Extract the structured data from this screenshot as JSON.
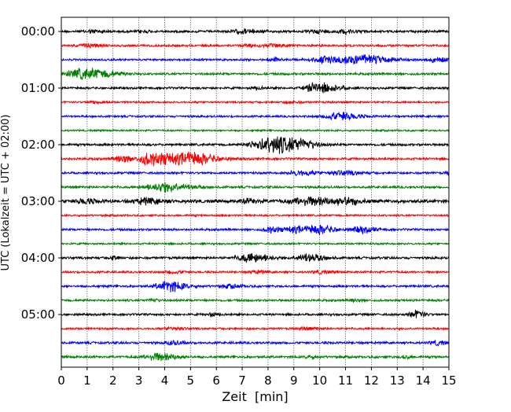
{
  "chart_data": {
    "type": "line",
    "subtype": "helicorder",
    "title": "",
    "xlabel": "Zeit  [min]",
    "ylabel": "UTC (Lokalzeit = UTC + 02:00)",
    "xlim": [
      0,
      15
    ],
    "x_ticks": [
      "0",
      "1",
      "2",
      "3",
      "4",
      "5",
      "6",
      "7",
      "8",
      "9",
      "10",
      "11",
      "12",
      "13",
      "14",
      "15"
    ],
    "y_ticks": [
      "00:00",
      "01:00",
      "02:00",
      "03:00",
      "04:00",
      "05:00"
    ],
    "minutes_per_line": 15,
    "grid": "vertical dotted",
    "line_colors": [
      "#000000",
      "#ff0000",
      "#0000ff",
      "#008000"
    ],
    "traces": [
      {
        "start": "00:00",
        "noise": 1.6,
        "events": [
          [
            1.2,
            2,
            0.6
          ],
          [
            3.1,
            1.5,
            0.4
          ],
          [
            7.0,
            2.5,
            0.8
          ],
          [
            9.9,
            2,
            0.6
          ],
          [
            11.0,
            2.5,
            0.6
          ]
        ]
      },
      {
        "start": "00:15",
        "noise": 1.5,
        "events": [
          [
            1.0,
            2.5,
            0.6
          ],
          [
            7.3,
            2,
            0.6
          ],
          [
            8.3,
            2,
            0.5
          ]
        ]
      },
      {
        "start": "00:30",
        "noise": 1.4,
        "events": [
          [
            8.1,
            2,
            0.5
          ],
          [
            10.5,
            5,
            1.5
          ],
          [
            11.9,
            4,
            1.2
          ],
          [
            14.5,
            3,
            0.5
          ]
        ]
      },
      {
        "start": "00:45",
        "noise": 1.6,
        "events": [
          [
            0.9,
            7,
            1.3
          ]
        ]
      },
      {
        "start": "01:00",
        "noise": 1.5,
        "events": [
          [
            9.9,
            7,
            0.9
          ],
          [
            7.5,
            1.5,
            0.4
          ]
        ]
      },
      {
        "start": "01:15",
        "noise": 1.3,
        "events": [
          [
            1.3,
            1.5,
            0.5
          ],
          [
            8.8,
            1.5,
            0.5
          ]
        ]
      },
      {
        "start": "01:30",
        "noise": 1.4,
        "events": [
          [
            10.7,
            5,
            1.0
          ]
        ]
      },
      {
        "start": "01:45",
        "noise": 1.2,
        "events": []
      },
      {
        "start": "02:00",
        "noise": 1.6,
        "events": [
          [
            8.3,
            12,
            1.2
          ],
          [
            7.4,
            3,
            0.5
          ],
          [
            9.3,
            3,
            0.6
          ]
        ]
      },
      {
        "start": "02:15",
        "noise": 1.6,
        "events": [
          [
            2.3,
            5,
            0.5
          ],
          [
            3.3,
            6,
            0.5
          ],
          [
            4.1,
            7,
            1.5
          ],
          [
            5.2,
            5,
            1.0
          ]
        ]
      },
      {
        "start": "02:30",
        "noise": 1.5,
        "events": [
          [
            9.2,
            3,
            0.8
          ],
          [
            10.8,
            3,
            0.8
          ],
          [
            15,
            3,
            0.2
          ]
        ]
      },
      {
        "start": "02:45",
        "noise": 1.6,
        "events": [
          [
            3.9,
            6,
            1.2
          ]
        ]
      },
      {
        "start": "03:00",
        "noise": 2.3,
        "events": [
          [
            0.9,
            3,
            0.6
          ],
          [
            3.2,
            3.5,
            0.8
          ],
          [
            9.6,
            5,
            1.4
          ],
          [
            11.0,
            4,
            0.6
          ],
          [
            7.2,
            2.5,
            0.5
          ]
        ]
      },
      {
        "start": "03:15",
        "noise": 1.3,
        "events": []
      },
      {
        "start": "03:30",
        "noise": 1.5,
        "events": [
          [
            8.1,
            4,
            0.5
          ],
          [
            9.0,
            4,
            0.6
          ],
          [
            9.9,
            6,
            0.8
          ],
          [
            11.6,
            4,
            0.7
          ]
        ]
      },
      {
        "start": "03:45",
        "noise": 1.3,
        "events": []
      },
      {
        "start": "04:00",
        "noise": 1.6,
        "events": [
          [
            2.0,
            2.5,
            0.3
          ],
          [
            7.3,
            6,
            0.9
          ],
          [
            9.5,
            5,
            0.8
          ]
        ]
      },
      {
        "start": "04:15",
        "noise": 1.4,
        "events": [
          [
            4.3,
            2,
            0.5
          ],
          [
            7.5,
            2,
            0.5
          ],
          [
            10,
            2,
            0.5
          ]
        ]
      },
      {
        "start": "04:30",
        "noise": 1.5,
        "events": [
          [
            4.1,
            7,
            0.8
          ],
          [
            6.5,
            2.5,
            0.6
          ]
        ]
      },
      {
        "start": "04:45",
        "noise": 1.5,
        "events": [
          [
            3.5,
            2,
            0.3
          ],
          [
            11.3,
            2,
            0.3
          ]
        ]
      },
      {
        "start": "05:00",
        "noise": 1.5,
        "events": [
          [
            5.8,
            2.5,
            0.3
          ],
          [
            13.7,
            5,
            0.4
          ]
        ]
      },
      {
        "start": "05:15",
        "noise": 1.4,
        "events": [
          [
            4.3,
            2,
            0.5
          ],
          [
            9.5,
            2,
            0.6
          ]
        ]
      },
      {
        "start": "05:30",
        "noise": 1.6,
        "events": [
          [
            4.3,
            2.5,
            0.5
          ],
          [
            14.5,
            3,
            0.4
          ]
        ]
      },
      {
        "start": "05:45",
        "noise": 1.6,
        "events": [
          [
            3.7,
            5,
            0.9
          ],
          [
            9.6,
            2,
            0.3
          ],
          [
            13.3,
            2,
            0.3
          ]
        ]
      }
    ]
  }
}
